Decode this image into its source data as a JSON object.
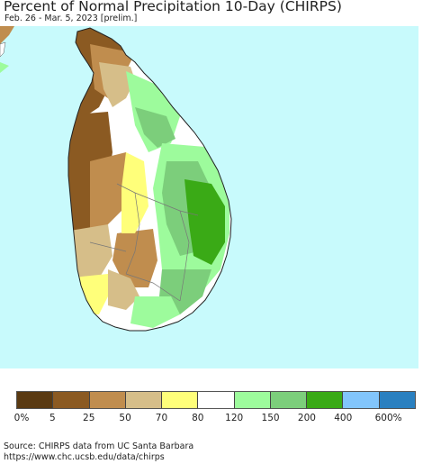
{
  "header": {
    "title": "Percent of Normal Precipitation 10-Day (CHIRPS)",
    "subtitle": "Feb. 26 - Mar. 5, 2023 [prelim.]"
  },
  "map": {
    "region": "Sri Lanka",
    "ocean_color": "#c8fafc",
    "outside_land_color": "#ffffff"
  },
  "legend": {
    "colors": [
      "#5a3a12",
      "#8b5a22",
      "#c08d4e",
      "#d6be89",
      "#ffff7a",
      "#ffffff",
      "#9dfb9c",
      "#7cce7b",
      "#3aaa16",
      "#82c5fb",
      "#2a80c0"
    ],
    "labels": [
      "0%",
      "5",
      "25",
      "50",
      "70",
      "80",
      "120",
      "150",
      "200",
      "400",
      "600%"
    ]
  },
  "footer": {
    "source_line1": "Source: CHIRPS data from UC Santa Barbara",
    "source_line2": "https://www.chc.ucsb.edu/data/chirps"
  }
}
